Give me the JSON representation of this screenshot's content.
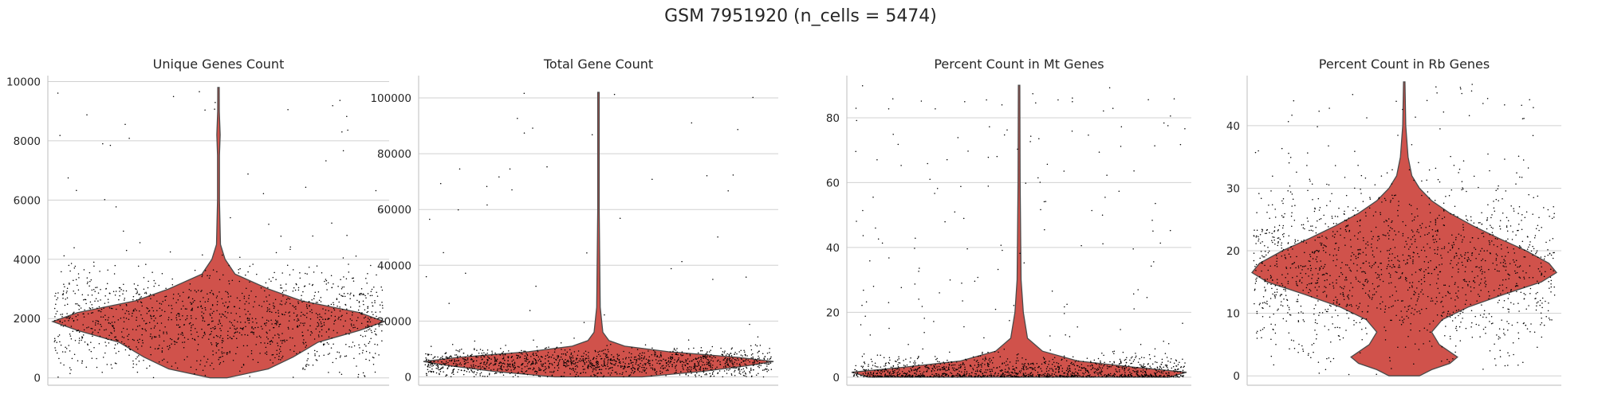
{
  "suptitle": "GSM 7951920 (n_cells = 5474)",
  "colors": {
    "violin": "#d0524b",
    "edge": "#4a4a4a",
    "grid": "#d0d0d0",
    "points": "#000000"
  },
  "chart_data": [
    {
      "type": "violin",
      "title": "Unique Genes Count",
      "ylim": [
        -250,
        10200
      ],
      "yticks": [
        0,
        2000,
        4000,
        6000,
        8000,
        10000
      ],
      "grid": true,
      "density_profile": [
        [
          0,
          0.05
        ],
        [
          300,
          0.3
        ],
        [
          700,
          0.45
        ],
        [
          1200,
          0.6
        ],
        [
          1600,
          0.85
        ],
        [
          1900,
          1.0
        ],
        [
          2200,
          0.85
        ],
        [
          2600,
          0.5
        ],
        [
          3000,
          0.3
        ],
        [
          3500,
          0.1
        ],
        [
          4000,
          0.04
        ],
        [
          4500,
          0.012
        ],
        [
          6000,
          0.006
        ],
        [
          7500,
          0.006
        ],
        [
          8200,
          0.01
        ],
        [
          9000,
          0.005
        ],
        [
          9800,
          0.002
        ]
      ],
      "points": {
        "n": 1400,
        "bulk_center": 1900,
        "bulk_spread": 900,
        "max": 9800,
        "outlier_frac": 0.04
      }
    },
    {
      "type": "violin",
      "title": "Total Gene Count",
      "ylim": [
        -3000,
        108000
      ],
      "yticks": [
        0,
        20000,
        40000,
        60000,
        80000,
        100000
      ],
      "grid": true,
      "density_profile": [
        [
          0,
          0.25
        ],
        [
          2000,
          0.6
        ],
        [
          4000,
          0.85
        ],
        [
          5500,
          1.0
        ],
        [
          7000,
          0.8
        ],
        [
          9000,
          0.4
        ],
        [
          11000,
          0.15
        ],
        [
          13000,
          0.06
        ],
        [
          16000,
          0.025
        ],
        [
          25000,
          0.01
        ],
        [
          60000,
          0.004
        ],
        [
          102000,
          0.002
        ]
      ],
      "points": {
        "n": 1400,
        "bulk_center": 5000,
        "bulk_spread": 2600,
        "max": 102000,
        "outlier_frac": 0.04
      }
    },
    {
      "type": "violin",
      "title": "Percent Count in Mt Genes",
      "ylim": [
        -2.5,
        93
      ],
      "yticks": [
        0,
        20,
        40,
        60,
        80
      ],
      "grid": true,
      "density_profile": [
        [
          0,
          0.9
        ],
        [
          1.5,
          1.0
        ],
        [
          3,
          0.7
        ],
        [
          5,
          0.35
        ],
        [
          8,
          0.14
        ],
        [
          12,
          0.05
        ],
        [
          20,
          0.025
        ],
        [
          30,
          0.012
        ],
        [
          60,
          0.006
        ],
        [
          90,
          0.002
        ]
      ],
      "points": {
        "n": 1400,
        "bulk_center": 1.5,
        "bulk_spread": 2.5,
        "max": 90,
        "outlier_frac": 0.12
      }
    },
    {
      "type": "violin",
      "title": "Percent Count in Rb Genes",
      "ylim": [
        -1.5,
        48
      ],
      "yticks": [
        0,
        10,
        20,
        30,
        40
      ],
      "grid": true,
      "density_profile": [
        [
          0,
          0.1
        ],
        [
          1,
          0.18
        ],
        [
          2,
          0.3
        ],
        [
          3,
          0.35
        ],
        [
          5,
          0.23
        ],
        [
          7,
          0.18
        ],
        [
          9,
          0.25
        ],
        [
          11,
          0.42
        ],
        [
          13,
          0.65
        ],
        [
          15,
          0.9
        ],
        [
          16.5,
          1.0
        ],
        [
          18,
          0.95
        ],
        [
          20,
          0.8
        ],
        [
          22,
          0.62
        ],
        [
          24,
          0.45
        ],
        [
          26,
          0.3
        ],
        [
          28,
          0.18
        ],
        [
          30,
          0.1
        ],
        [
          32,
          0.05
        ],
        [
          35,
          0.025
        ],
        [
          40,
          0.01
        ],
        [
          47,
          0.004
        ]
      ],
      "points": {
        "n": 1600,
        "bulk_center": 17,
        "bulk_spread": 6.5,
        "max": 47,
        "outlier_frac": 0.06
      }
    }
  ]
}
